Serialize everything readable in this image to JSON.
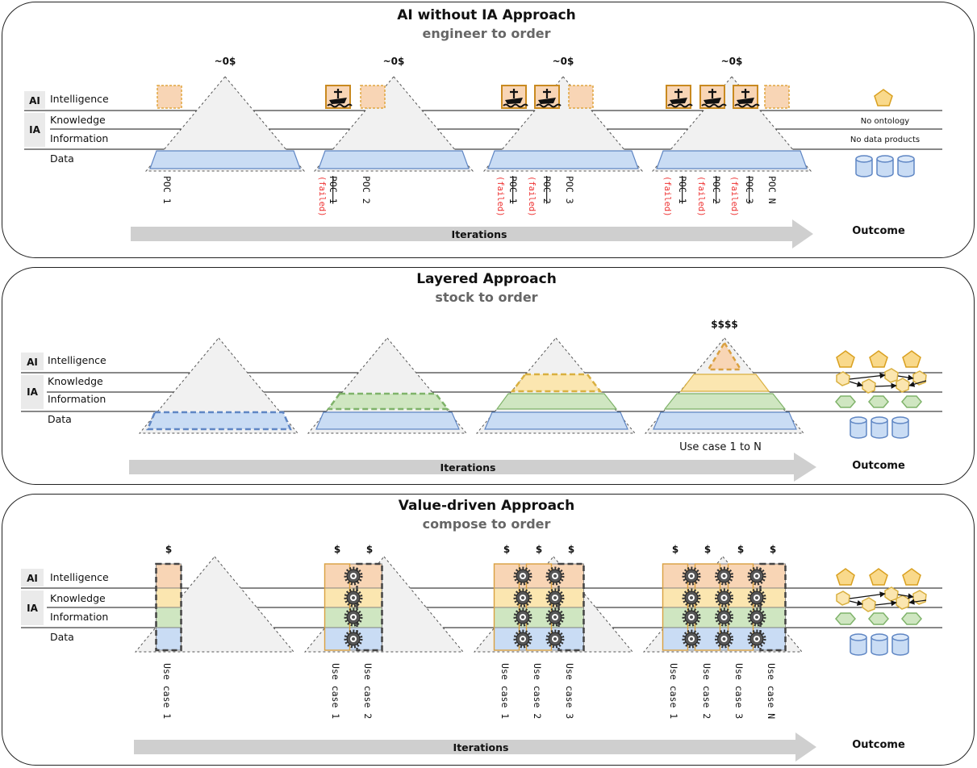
{
  "panels": [
    {
      "title": "AI without IA Approach",
      "subtitle": "engineer to order",
      "costs": [
        "~0$",
        "~0$",
        "~0$",
        "~0$"
      ],
      "pocs": [
        "POC 1",
        "POC 2",
        "POC 3",
        "POC N"
      ],
      "struck_pocs": [
        "POC 1",
        "POC 2",
        "POC 3"
      ],
      "failed_label": "(failed)",
      "outcome_notes": [
        "No ontology",
        "No data products"
      ],
      "iterations_label": "Iterations",
      "outcome_label": "Outcome"
    },
    {
      "title": "Layered Approach",
      "subtitle": "stock to order",
      "cost": "$$$$",
      "use_case_range": "Use case 1 to N",
      "iterations_label": "Iterations",
      "outcome_label": "Outcome"
    },
    {
      "title": "Value-driven Approach",
      "subtitle": "compose to order",
      "cost": "$",
      "use_cases": [
        "Use case 1",
        "Use case 2",
        "Use case 3",
        "Use case N"
      ],
      "iterations_label": "Iterations",
      "outcome_label": "Outcome"
    }
  ],
  "layer_labels": {
    "ai": "AI",
    "ia": "IA",
    "intelligence": "Intelligence",
    "knowledge": "Knowledge",
    "information": "Information",
    "data": "Data"
  },
  "colors": {
    "intelligence_fill": "#f8d5b5",
    "intelligence_stroke": "#d9a040",
    "knowledge_fill": "#fbe6b0",
    "information_fill": "#cfe6c1",
    "information_stroke": "#7fb36a",
    "data_fill": "#c9dcf4",
    "data_stroke": "#5f86c4",
    "pyramid_fill": "#f1f1f1",
    "arrow_fill": "#cfcfcf",
    "failed_text": "#e33333"
  }
}
